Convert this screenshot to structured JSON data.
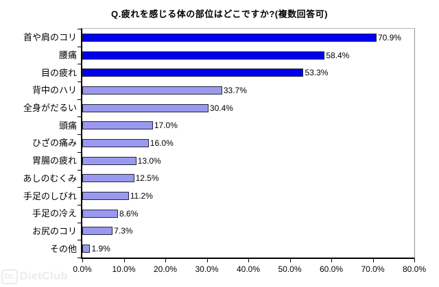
{
  "chart_data": {
    "type": "bar",
    "orientation": "horizontal",
    "title": "Q.疲れを感じる体の部位はどこですか?(複数回答可)",
    "categories": [
      "首や肩のコリ",
      "腰痛",
      "目の疲れ",
      "背中のハリ",
      "全身がだるい",
      "頭痛",
      "ひざの痛み",
      "胃腸の疲れ",
      "あしのむくみ",
      "手足のしびれ",
      "手足の冷え",
      "お尻のコリ",
      "その他"
    ],
    "values": [
      70.9,
      58.4,
      53.3,
      33.7,
      30.4,
      17.0,
      16.0,
      13.0,
      12.5,
      11.2,
      8.6,
      7.3,
      1.9
    ],
    "value_labels": [
      "70.9%",
      "58.4%",
      "53.3%",
      "33.7%",
      "30.4%",
      "17.0%",
      "16.0%",
      "13.0%",
      "12.5%",
      "11.2%",
      "8.6%",
      "7.3%",
      "1.9%"
    ],
    "colors": [
      "#0000ee",
      "#0000ee",
      "#0000ee",
      "#9999f0",
      "#9999f0",
      "#9999f0",
      "#9999f0",
      "#9999f0",
      "#9999f0",
      "#9999f0",
      "#9999f0",
      "#9999f0",
      "#9999f0"
    ],
    "xlim": [
      0,
      80
    ],
    "x_tick_labels": [
      "0.0%",
      "10.0%",
      "20.0%",
      "30.0%",
      "40.0%",
      "50.0%",
      "60.0%",
      "70.0%",
      "80.0%"
    ],
    "grid": false,
    "legend": false,
    "bar_border_color": "#26263a",
    "plot_border_color": "#909090",
    "axis_color": "#000000"
  },
  "watermark": {
    "logo_text": "DC",
    "name": "DietClub"
  }
}
